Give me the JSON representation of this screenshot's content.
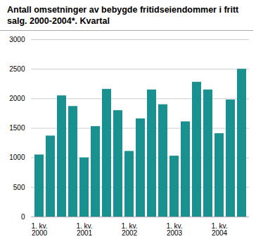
{
  "chart_data": {
    "type": "bar",
    "title": "Antall omsetninger av bebygde fritidseiendommer i fritt\nsalg. 2000-2004*. Kvartal",
    "categories": [
      "1. kv.\n2000",
      null,
      null,
      null,
      "1. kv.\n2001",
      null,
      null,
      null,
      "1. kv.\n2002",
      null,
      null,
      null,
      "1. kv.\n2003",
      null,
      null,
      null,
      "1. kv.\n2004",
      null,
      null
    ],
    "values": [
      1050,
      1370,
      2050,
      1870,
      1000,
      1530,
      2160,
      1800,
      1110,
      1660,
      2150,
      1900,
      1030,
      1610,
      2280,
      2150,
      1410,
      1980,
      2500
    ],
    "color": "#1a9090",
    "ylim": [
      0,
      3000
    ],
    "yticks": [
      0,
      500,
      1000,
      1500,
      2000,
      2500,
      3000
    ],
    "grid": true
  }
}
